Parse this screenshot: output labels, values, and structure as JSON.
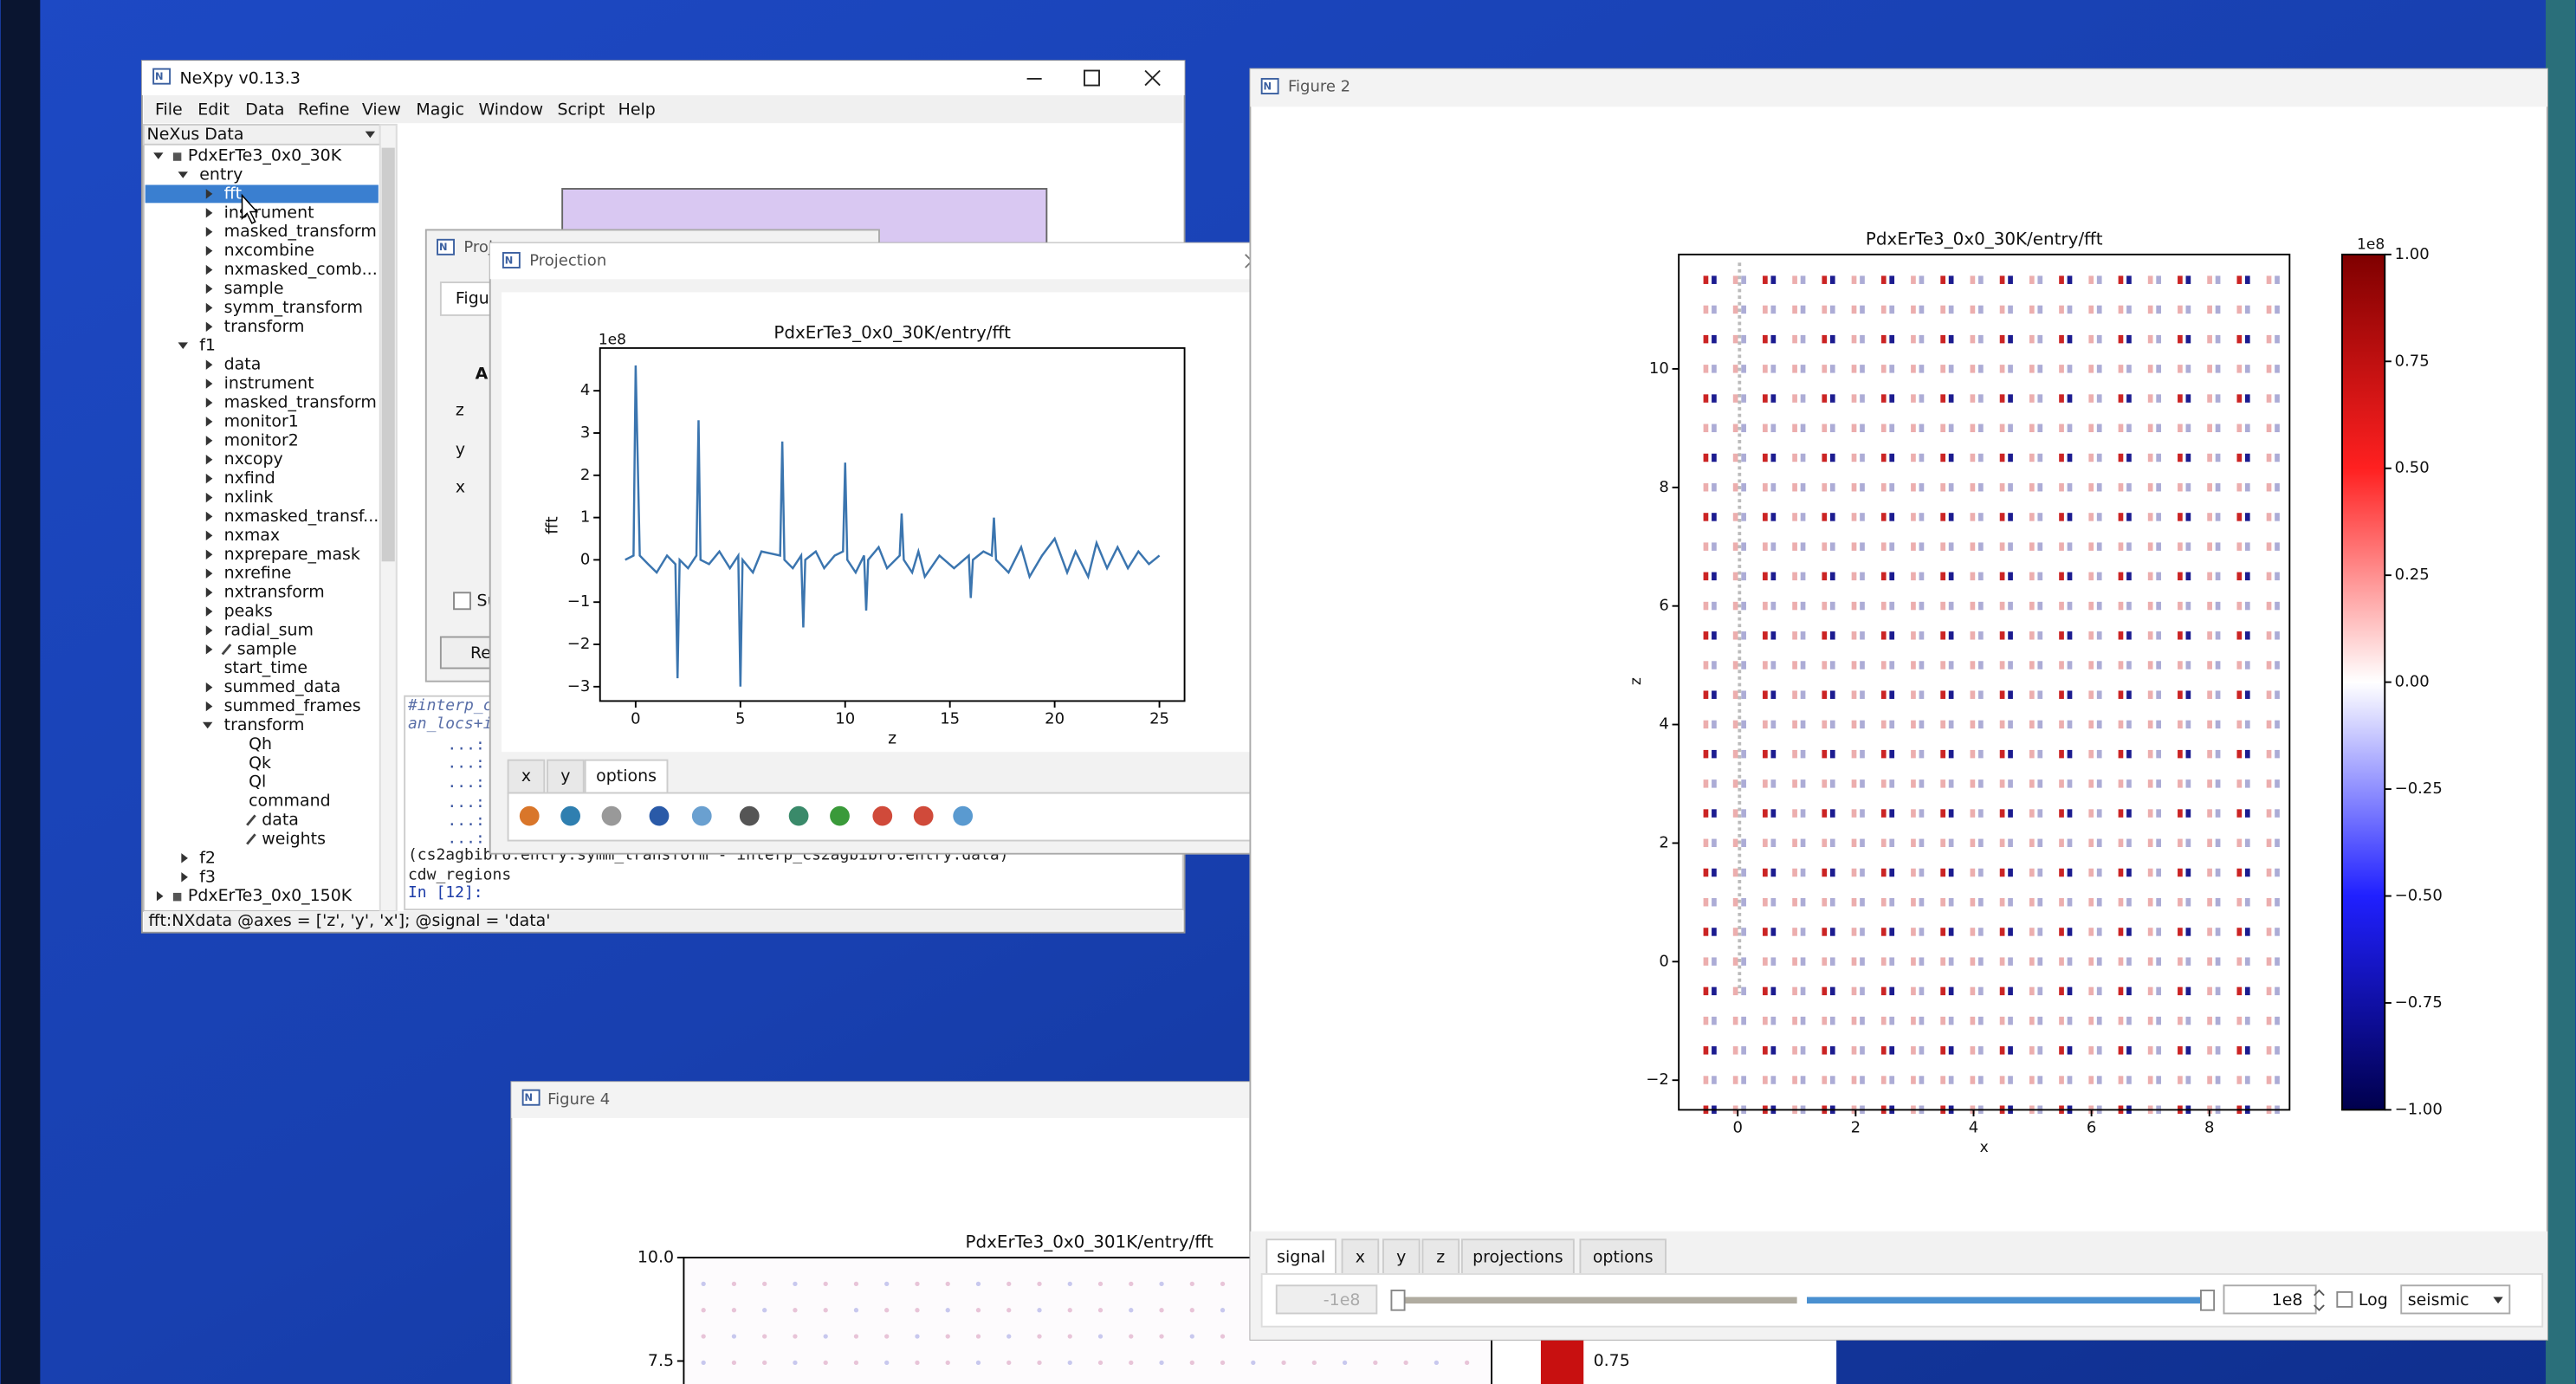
{
  "nexpy_window": {
    "title": "NeXpy v0.13.3",
    "menu": [
      "File",
      "Edit",
      "Data",
      "Refine",
      "View",
      "Magic",
      "Window",
      "Script",
      "Help"
    ],
    "tree_header": "NeXus Data",
    "tree": [
      {
        "label": "PdxErTe3_0x0_30K",
        "level": 0,
        "toggle": "open",
        "icon": "lock"
      },
      {
        "label": "entry",
        "level": 1,
        "toggle": "open"
      },
      {
        "label": "fft",
        "level": 2,
        "toggle": "closed",
        "selected": true
      },
      {
        "label": "instrument",
        "level": 2,
        "toggle": "closed"
      },
      {
        "label": "masked_transform",
        "level": 2,
        "toggle": "closed"
      },
      {
        "label": "nxcombine",
        "level": 2,
        "toggle": "closed"
      },
      {
        "label": "nxmasked_comb...",
        "level": 2,
        "toggle": "closed"
      },
      {
        "label": "sample",
        "level": 2,
        "toggle": "closed"
      },
      {
        "label": "symm_transform",
        "level": 2,
        "toggle": "closed"
      },
      {
        "label": "transform",
        "level": 2,
        "toggle": "closed"
      },
      {
        "label": "f1",
        "level": 1,
        "toggle": "open"
      },
      {
        "label": "data",
        "level": 2,
        "toggle": "closed"
      },
      {
        "label": "instrument",
        "level": 2,
        "toggle": "closed"
      },
      {
        "label": "masked_transform",
        "level": 2,
        "toggle": "closed"
      },
      {
        "label": "monitor1",
        "level": 2,
        "toggle": "closed"
      },
      {
        "label": "monitor2",
        "level": 2,
        "toggle": "closed"
      },
      {
        "label": "nxcopy",
        "level": 2,
        "toggle": "closed"
      },
      {
        "label": "nxfind",
        "level": 2,
        "toggle": "closed"
      },
      {
        "label": "nxlink",
        "level": 2,
        "toggle": "closed"
      },
      {
        "label": "nxmasked_transf...",
        "level": 2,
        "toggle": "closed"
      },
      {
        "label": "nxmax",
        "level": 2,
        "toggle": "closed"
      },
      {
        "label": "nxprepare_mask",
        "level": 2,
        "toggle": "closed"
      },
      {
        "label": "nxrefine",
        "level": 2,
        "toggle": "closed"
      },
      {
        "label": "nxtransform",
        "level": 2,
        "toggle": "closed"
      },
      {
        "label": "peaks",
        "level": 2,
        "toggle": "closed"
      },
      {
        "label": "radial_sum",
        "level": 2,
        "toggle": "closed"
      },
      {
        "label": "sample",
        "level": 2,
        "toggle": "closed",
        "icon": "link"
      },
      {
        "label": "start_time",
        "level": 2,
        "toggle": "none"
      },
      {
        "label": "summed_data",
        "level": 2,
        "toggle": "closed"
      },
      {
        "label": "summed_frames",
        "level": 2,
        "toggle": "closed"
      },
      {
        "label": "transform",
        "level": 2,
        "toggle": "open"
      },
      {
        "label": "Qh",
        "level": 3,
        "toggle": "none"
      },
      {
        "label": "Qk",
        "level": 3,
        "toggle": "none"
      },
      {
        "label": "Ql",
        "level": 3,
        "toggle": "none"
      },
      {
        "label": "command",
        "level": 3,
        "toggle": "none"
      },
      {
        "label": "data",
        "level": 3,
        "toggle": "none",
        "icon": "link"
      },
      {
        "label": "weights",
        "level": 3,
        "toggle": "none",
        "icon": "link"
      },
      {
        "label": "f2",
        "level": 1,
        "toggle": "closed"
      },
      {
        "label": "f3",
        "level": 1,
        "toggle": "closed"
      },
      {
        "label": "PdxErTe3_0x0_150K",
        "level": 0,
        "toggle": "closed",
        "icon": "lock"
      }
    ],
    "console": [
      "#interp_c",
      "an_locs+i",
      "...:",
      "...:",
      "...:",
      "...:",
      "...:",
      "...:",
      "(cs2agbibr6.entry.symm_transform - interp_cs2agbibr6.entry.data)",
      "cdw_regions",
      "In [12]:"
    ],
    "status": "fft:NXdata @axes = ['z', 'y', 'x']; @signal = 'data'"
  },
  "hidden_dialog": {
    "title": "Proj",
    "tab": "Figu",
    "heading": "A",
    "rows": [
      "z",
      "y",
      "x"
    ],
    "checkbox": "Su",
    "button": "Re"
  },
  "projection_window": {
    "title": "Projection",
    "tabs": [
      "x",
      "y",
      "options"
    ],
    "plot": {
      "title": "PdxErTe3_0x0_30K/entry/fft",
      "xlabel": "z",
      "ylabel": "fft",
      "offset": "1e8",
      "xlim": [
        -1.7,
        26.2
      ],
      "ylim": [
        -3.34,
        5.01
      ],
      "xticks": [
        0,
        5,
        10,
        15,
        20,
        25
      ],
      "yticks": [
        {
          "value": -3,
          "label": "−3"
        },
        {
          "value": -2,
          "label": "−2"
        },
        {
          "value": -1,
          "label": "−1"
        },
        0,
        1,
        2,
        3,
        4
      ],
      "color": "#3b75af",
      "x": [
        -0.5,
        -0.1,
        0,
        0.2,
        0.6,
        1,
        1.5,
        1.9,
        2,
        2.1,
        2.5,
        2.9,
        3,
        3.1,
        3.5,
        4,
        4.5,
        4.9,
        5,
        5.1,
        5.6,
        6,
        6.9,
        7,
        7.1,
        7.5,
        7.9,
        8,
        8.1,
        8.6,
        9,
        9.5,
        9.9,
        10,
        10.1,
        10.5,
        10.9,
        11,
        11.1,
        11.6,
        12,
        12.6,
        12.7,
        12.8,
        13.2,
        13.5,
        13.8,
        14.5,
        15.2,
        15.9,
        16,
        16.1,
        16.6,
        17,
        17.1,
        17.2,
        17.8,
        18.4,
        18.8,
        19.4,
        20,
        20.6,
        21,
        21.6,
        22,
        22.5,
        23,
        23.5,
        24,
        24.5,
        25
      ],
      "y": [
        0,
        0.1,
        4.6,
        0.1,
        -0.1,
        -0.3,
        0.1,
        -0.1,
        -2.8,
        0,
        -0.2,
        0.1,
        3.3,
        0,
        -0.1,
        0.2,
        -0.2,
        0.1,
        -3,
        0,
        -0.3,
        0.2,
        0.1,
        2.8,
        0,
        -0.2,
        0.1,
        -1.6,
        0,
        0.2,
        -0.2,
        0.1,
        0.2,
        2.3,
        0,
        -0.3,
        0.1,
        -1.2,
        0,
        0.3,
        -0.2,
        0.1,
        1.1,
        0,
        -0.3,
        0.2,
        -0.4,
        0.1,
        -0.2,
        0.1,
        -0.9,
        0,
        0.2,
        0.1,
        1,
        0,
        -0.3,
        0.3,
        -0.4,
        0.1,
        0.5,
        -0.3,
        0.2,
        -0.4,
        0.4,
        -0.2,
        0.3,
        -0.2,
        0.2,
        -0.1,
        0.1
      ]
    }
  },
  "figure2_window": {
    "title": "Figure 2",
    "plot": {
      "title": "PdxErTe3_0x0_30K/entry/fft",
      "xlabel": "x",
      "ylabel": "z",
      "xlim": [
        -1,
        9.36
      ],
      "ylim": [
        -2.5,
        11.93
      ],
      "xticks": [
        0,
        2,
        4,
        6,
        8
      ],
      "yticks": [
        {
          "value": -2,
          "label": "−2"
        },
        0,
        2,
        4,
        6,
        8,
        10
      ],
      "colorbar_offset": "1e8",
      "colorbar_lim": [
        -1,
        1
      ],
      "colorbar_ticks": [
        {
          "value": 1,
          "label": "1.00"
        },
        {
          "value": 0.75,
          "label": "0.75"
        },
        {
          "value": 0.5,
          "label": "0.50"
        },
        {
          "value": 0.25,
          "label": "0.25"
        },
        {
          "value": 0,
          "label": "0.00"
        },
        {
          "value": -0.25,
          "label": "−0.25"
        },
        {
          "value": -0.5,
          "label": "−0.50"
        },
        {
          "value": -0.75,
          "label": "−0.75"
        },
        {
          "value": -1,
          "label": "−1.00"
        }
      ]
    },
    "tabs": [
      "signal",
      "x",
      "y",
      "z",
      "projections",
      "options"
    ],
    "min_value": "-1e8",
    "max_value": "1e8",
    "log_label": "Log",
    "colormap": "seismic"
  },
  "figure4_window": {
    "title": "Figure 4",
    "plot_title": "PdxErTe3_0x0_301K/entry/fft",
    "yticks": [
      {
        "value": 10,
        "label": "10.0"
      },
      7.5
    ],
    "colorbar_tick": "0.75"
  }
}
